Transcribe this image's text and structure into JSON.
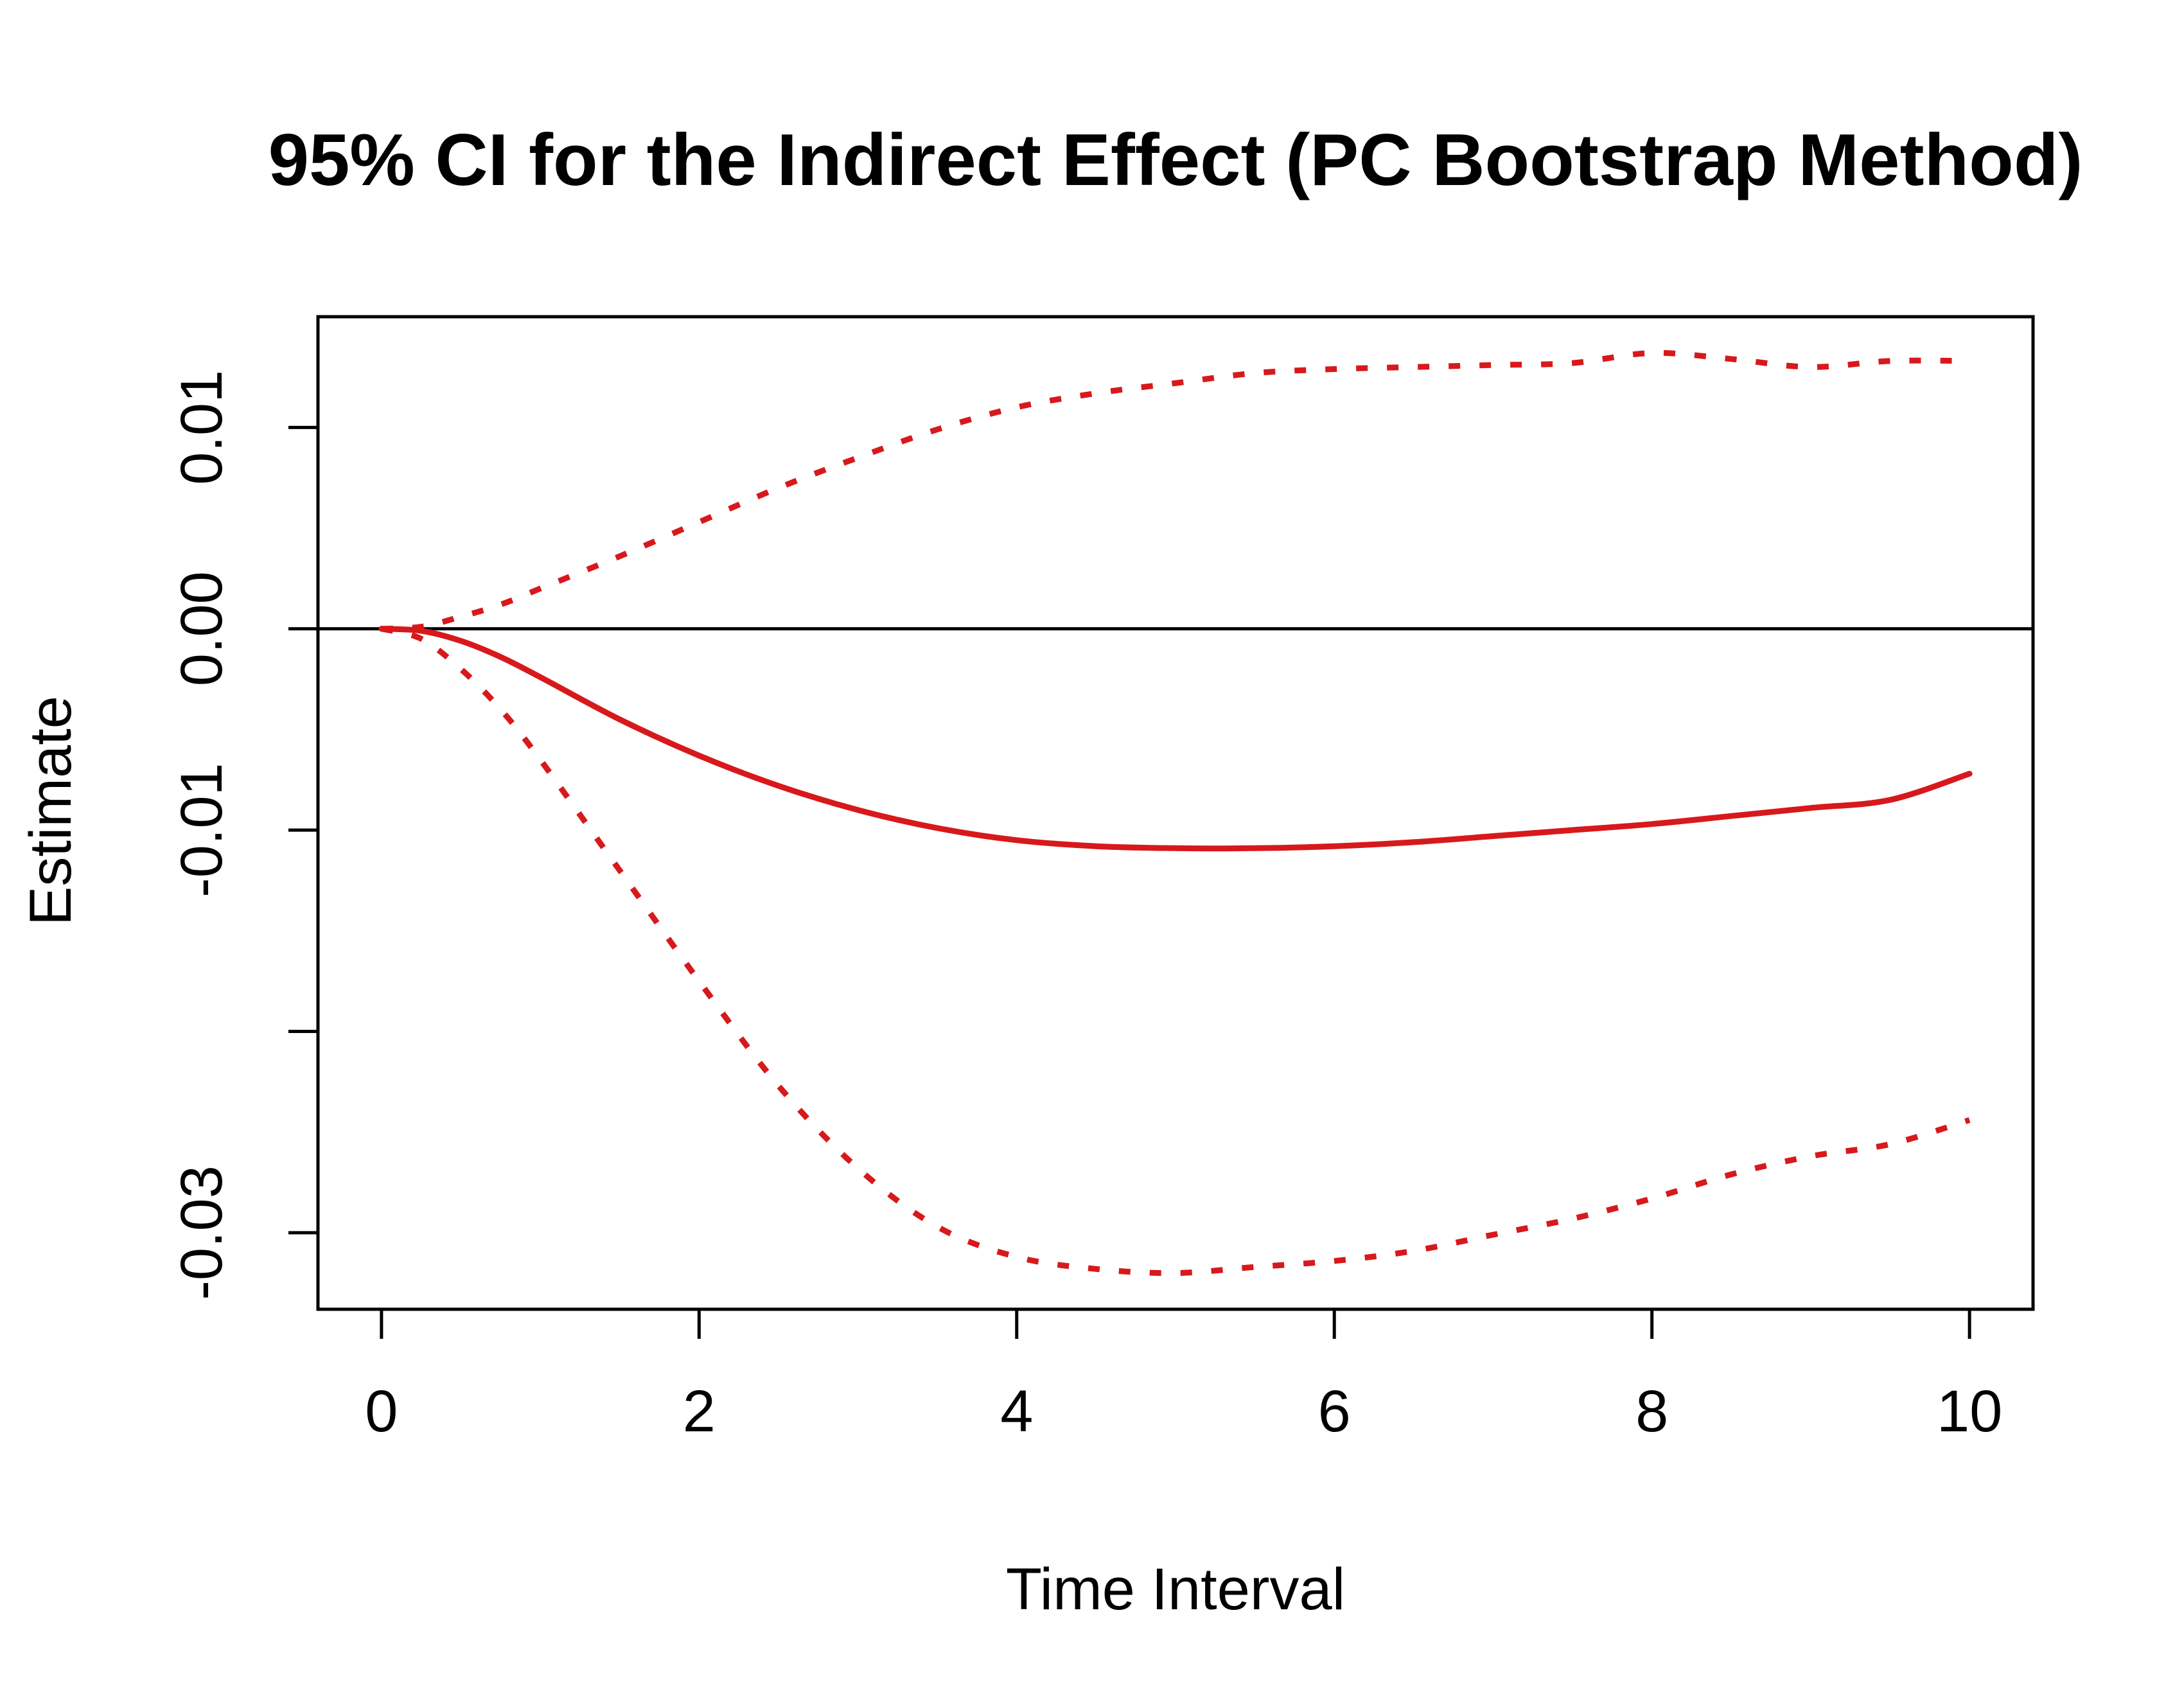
{
  "chart_data": {
    "type": "line",
    "title": "95% CI for the Indirect Effect (PC Bootstrap Method)",
    "xlabel": "Time Interval",
    "ylabel": "Estimate",
    "xlim": [
      -0.4,
      10.4
    ],
    "ylim": [
      -0.0338,
      0.0155
    ],
    "x_ticks": [
      {
        "value": 0,
        "label": "0"
      },
      {
        "value": 2,
        "label": "2"
      },
      {
        "value": 4,
        "label": "4"
      },
      {
        "value": 6,
        "label": "6"
      },
      {
        "value": 8,
        "label": "8"
      },
      {
        "value": 10,
        "label": "10"
      }
    ],
    "y_ticks": [
      {
        "value": -0.03,
        "label": "-0.03"
      },
      {
        "value": -0.02,
        "label": ""
      },
      {
        "value": -0.01,
        "label": "-0.01"
      },
      {
        "value": 0.0,
        "label": "0.00"
      },
      {
        "value": 0.01,
        "label": "0.01"
      }
    ],
    "reference_line": {
      "y": 0,
      "color": "#000000"
    },
    "grid": false,
    "series_color": "#d7191c",
    "series": [
      {
        "style": "solid",
        "x": [
          0,
          0.25,
          0.5,
          0.75,
          1,
          1.5,
          2,
          2.5,
          3,
          3.5,
          4,
          4.5,
          5,
          5.5,
          6,
          6.5,
          7,
          7.5,
          8,
          8.5,
          9,
          9.5,
          10
        ],
        "y": [
          0,
          -0.0001,
          -0.0006,
          -0.0014,
          -0.0024,
          -0.0045,
          -0.0063,
          -0.0078,
          -0.009,
          -0.0099,
          -0.0105,
          -0.0108,
          -0.0109,
          -0.0109,
          -0.0108,
          -0.0106,
          -0.0103,
          -0.01,
          -0.0097,
          -0.0093,
          -0.0089,
          -0.0085,
          -0.0072
        ]
      },
      {
        "style": "dotted",
        "x": [
          0,
          0.25,
          0.5,
          0.75,
          1,
          1.5,
          2,
          2.5,
          3,
          3.5,
          4,
          4.5,
          5,
          5.5,
          6,
          6.5,
          7,
          7.5,
          8,
          8.5,
          9,
          9.5,
          10
        ],
        "y": [
          0,
          0.0001,
          0.0006,
          0.0012,
          0.002,
          0.0036,
          0.0053,
          0.007,
          0.0085,
          0.0099,
          0.011,
          0.0117,
          0.0122,
          0.0127,
          0.0129,
          0.013,
          0.0131,
          0.0132,
          0.0137,
          0.0134,
          0.013,
          0.0133,
          0.0133
        ]
      },
      {
        "style": "dotted",
        "x": [
          0,
          0.25,
          0.5,
          0.75,
          1,
          1.5,
          2,
          2.5,
          3,
          3.5,
          4,
          4.5,
          5,
          5.5,
          6,
          6.5,
          7,
          7.5,
          8,
          8.5,
          9,
          9.5,
          10
        ],
        "y": [
          0,
          -0.0005,
          -0.002,
          -0.004,
          -0.0065,
          -0.012,
          -0.0175,
          -0.0227,
          -0.0268,
          -0.0297,
          -0.0312,
          -0.0318,
          -0.032,
          -0.0317,
          -0.0314,
          -0.0309,
          -0.0301,
          -0.0293,
          -0.0283,
          -0.0271,
          -0.0262,
          -0.0256,
          -0.0244
        ]
      }
    ]
  }
}
